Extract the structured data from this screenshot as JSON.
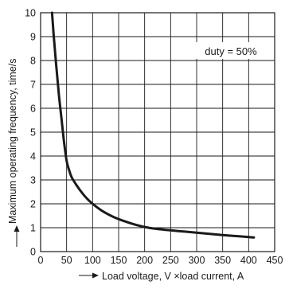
{
  "chart_data": {
    "type": "line",
    "title": "",
    "xlabel": "Load voltage, V ×load current, A",
    "ylabel": "Maximum operating frequency, time/s",
    "xlim": [
      0,
      450
    ],
    "ylim": [
      0,
      10
    ],
    "x_ticks": [
      0,
      50,
      100,
      150,
      200,
      250,
      300,
      350,
      400,
      450
    ],
    "y_ticks": [
      0,
      1,
      2,
      3,
      4,
      5,
      6,
      7,
      8,
      9,
      10
    ],
    "grid": true,
    "annotation": "duty = 50%",
    "series": [
      {
        "color": "#1a1a1a",
        "x": [
          22,
          25,
          30,
          35,
          40,
          45,
          50,
          55,
          60,
          70,
          80,
          90,
          100,
          110,
          120,
          140,
          160,
          180,
          200,
          220,
          250,
          275,
          300,
          325,
          350,
          375,
          400,
          410
        ],
        "y": [
          10,
          9.1,
          7.8,
          6.6,
          5.6,
          4.6,
          3.8,
          3.4,
          3.1,
          2.75,
          2.45,
          2.2,
          2.0,
          1.83,
          1.68,
          1.45,
          1.28,
          1.14,
          1.03,
          0.96,
          0.89,
          0.84,
          0.79,
          0.74,
          0.69,
          0.65,
          0.61,
          0.59
        ]
      }
    ]
  }
}
